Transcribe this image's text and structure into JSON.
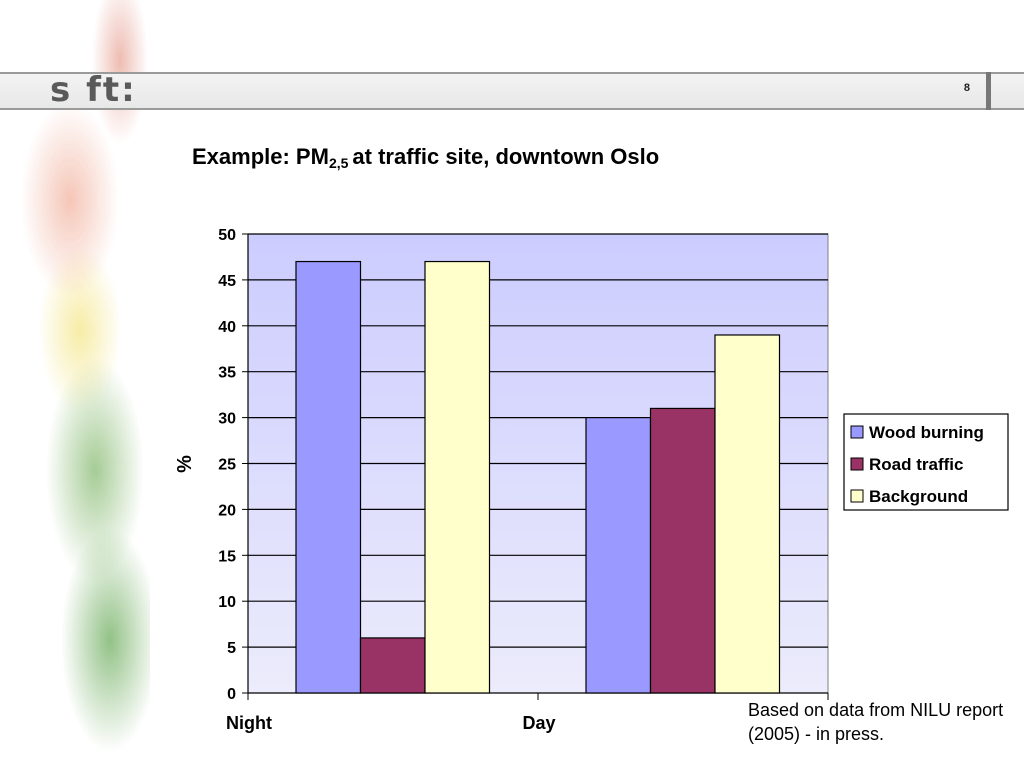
{
  "header": {
    "logo_text": "s ft:",
    "page_number": "8"
  },
  "slide": {
    "title_main": "Example: PM",
    "title_subscript": "2,5",
    "title_rest": "at traffic site, downtown Oslo",
    "note": "Based on data from NILU report (2005) - in press."
  },
  "chart_data": {
    "type": "bar",
    "categories": [
      "Night",
      "Day"
    ],
    "series": [
      {
        "name": "Wood burning",
        "values": [
          47,
          30
        ],
        "color": "#9999ff"
      },
      {
        "name": "Road traffic",
        "values": [
          6,
          31
        ],
        "color": "#993366"
      },
      {
        "name": "Background",
        "values": [
          47,
          39
        ],
        "color": "#ffffcc"
      }
    ],
    "title": "Example: PM2,5 at traffic site, downtown Oslo",
    "xlabel": "",
    "ylabel": "%",
    "ylim": [
      0,
      50
    ],
    "yticks": [
      0,
      5,
      10,
      15,
      20,
      25,
      30,
      35,
      40,
      45,
      50
    ],
    "grid": true,
    "legend_position": "right",
    "plot_background": "#ccccff"
  }
}
